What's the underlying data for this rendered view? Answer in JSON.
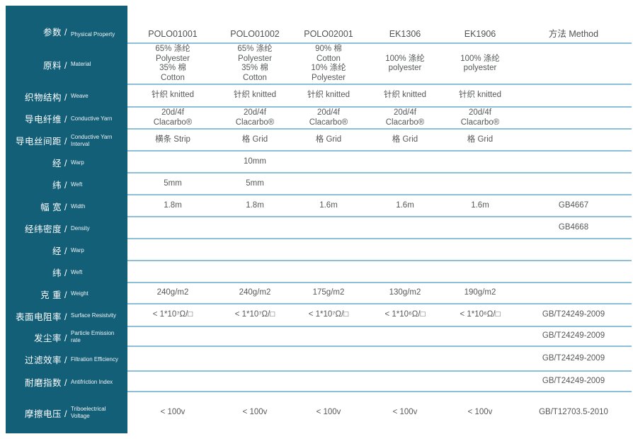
{
  "colors": {
    "sidebar_bg": "#145f78",
    "row_line": "#8cc0d8",
    "cell_text": "#56585a",
    "sidebar_text": "#ffffff"
  },
  "sidebar": {
    "items": [
      {
        "zh": "参数 /",
        "en": "Physical Property"
      },
      {
        "zh": "原料 /",
        "en": "Material"
      },
      {
        "zh": "织物结构 /",
        "en": "Weave"
      },
      {
        "zh": "导电纤维 /",
        "en": "Conductive Yarn"
      },
      {
        "zh": "导电丝间距 /",
        "en": "Conductive Yarn Interval"
      },
      {
        "zh": "经 /",
        "en": "Warp"
      },
      {
        "zh": "纬 /",
        "en": "Weft"
      },
      {
        "zh": "幅 宽 /",
        "en": "Width"
      },
      {
        "zh": "经纬密度 /",
        "en": "Density"
      },
      {
        "zh": "经 /",
        "en": "Warp"
      },
      {
        "zh": "纬 /",
        "en": "Weft"
      },
      {
        "zh": "克 重 /",
        "en": "Weight"
      },
      {
        "zh": "表面电阻率 /",
        "en": "Surface Resistvity"
      },
      {
        "zh": "发尘率 /",
        "en": "Particle Emission rate"
      },
      {
        "zh": "过滤效率 /",
        "en": "Filtration Efficiency"
      },
      {
        "zh": "耐磨指数 /",
        "en": "Antifriction Index"
      },
      {
        "zh": "摩擦电压 /",
        "en": "Triboelectrical Voltage"
      }
    ]
  },
  "header": {
    "columns": [
      "POLO01001",
      "POLO01002",
      "POLO02001",
      "EK1306",
      "EK1906",
      "方法 Method"
    ]
  },
  "rows": [
    {
      "label": "Material",
      "cells": [
        [
          "65% 涤纶",
          "Polyester",
          "35% 棉",
          "Cotton"
        ],
        [
          "65% 涤纶",
          "Polyester",
          "35% 棉",
          "Cotton"
        ],
        [
          "90% 棉",
          "Cotton",
          "10% 涤纶",
          "Polyester"
        ],
        [
          "100% 涤纶",
          "polyester"
        ],
        [
          "100% 涤纶",
          "polyester"
        ],
        ""
      ]
    },
    {
      "label": "Weave",
      "cells": [
        "针织 knitted",
        "针织 knitted",
        "针织 knitted",
        "针织 knitted",
        "针织 knitted",
        ""
      ]
    },
    {
      "label": "Conductive Yarn",
      "cells": [
        [
          "20d/4f",
          "Clacarbo®"
        ],
        [
          "20d/4f",
          "Clacarbo®"
        ],
        [
          "20d/4f",
          "Clacarbo®"
        ],
        [
          "20d/4f",
          "Clacarbo®"
        ],
        [
          "20d/4f",
          "Clacarbo®"
        ],
        ""
      ]
    },
    {
      "label": "Conductive Yarn Interval",
      "cells": [
        "横条 Strip",
        "格 Grid",
        "格 Grid",
        "格 Grid",
        "格 Grid",
        ""
      ]
    },
    {
      "label": "Warp",
      "cells": [
        "",
        "10mm",
        "",
        "",
        "",
        ""
      ]
    },
    {
      "label": "Weft",
      "cells": [
        "5mm",
        "5mm",
        "",
        "",
        "",
        ""
      ]
    },
    {
      "label": "Width",
      "cells": [
        "1.8m",
        "1.8m",
        "1.6m",
        "1.6m",
        "1.6m",
        "GB4667"
      ]
    },
    {
      "label": "Density",
      "cells": [
        "",
        "",
        "",
        "",
        "",
        "GB4668"
      ]
    },
    {
      "label": "Warp",
      "cells": [
        "",
        "",
        "",
        "",
        "",
        ""
      ]
    },
    {
      "label": "Weft",
      "cells": [
        "",
        "",
        "",
        "",
        "",
        ""
      ]
    },
    {
      "label": "Weight",
      "cells": [
        "240g/m2",
        "240g/m2",
        "175g/m2",
        "130g/m2",
        "190g/m2",
        ""
      ]
    },
    {
      "label": "Surface Resistvity",
      "cells": [
        "< 1*10⁷Ω/□",
        "< 1*10⁷Ω/□",
        "< 1*10⁷Ω/□",
        "< 1*10⁶Ω/□",
        "< 1*10⁶Ω/□",
        "GB/T24249-2009"
      ]
    },
    {
      "label": "Particle Emission rate",
      "cells": [
        "",
        "",
        "",
        "",
        "",
        "GB/T24249-2009"
      ]
    },
    {
      "label": "Filtration Efficiency",
      "cells": [
        "",
        "",
        "",
        "",
        "",
        "GB/T24249-2009"
      ]
    },
    {
      "label": "Antifriction Index",
      "cells": [
        "",
        "",
        "",
        "",
        "",
        "GB/T24249-2009"
      ]
    },
    {
      "label": "Triboelectrical Voltage",
      "cells": [
        "< 100v",
        "< 100v",
        "< 100v",
        "< 100v",
        "< 100v",
        "GB/T12703.5-2010"
      ]
    }
  ]
}
